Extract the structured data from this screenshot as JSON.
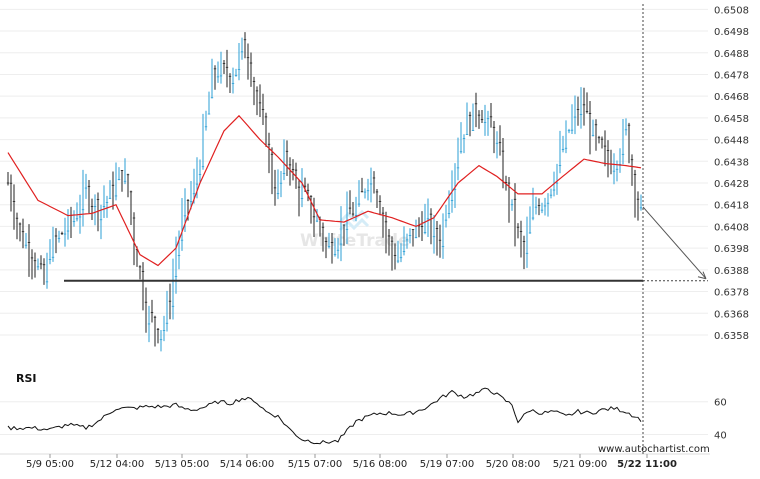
{
  "chart_data": {
    "type": "line",
    "price_chart": {
      "y_ticks": [
        "0.6508",
        "0.6498",
        "0.6488",
        "0.6478",
        "0.6468",
        "0.6458",
        "0.6448",
        "0.6438",
        "0.6428",
        "0.6418",
        "0.6408",
        "0.6398",
        "0.6388",
        "0.6378",
        "0.6368",
        "0.6358"
      ],
      "ylim": [
        0.6352,
        0.651
      ],
      "support_level": 0.6383,
      "projection": {
        "from": 0.6417,
        "to": 0.6383
      },
      "colors": {
        "bull": "#2b9fd6",
        "bear": "#222222",
        "ma": "#e02020",
        "level": "#333333",
        "arrow": "#555555"
      },
      "watermark": "WhiteTrade",
      "x_categories": [
        "5/9 05:00",
        "5/12 04:00",
        "5/13 05:00",
        "5/14 06:00",
        "5/15 07:00",
        "5/16 08:00",
        "5/19 07:00",
        "5/20 08:00",
        "5/21 09:00",
        "5/22 11:00"
      ],
      "ma_anchors": [
        [
          0,
          0.6442
        ],
        [
          10,
          0.642
        ],
        [
          20,
          0.6413
        ],
        [
          28,
          0.6414
        ],
        [
          36,
          0.6418
        ],
        [
          44,
          0.6395
        ],
        [
          50,
          0.639
        ],
        [
          56,
          0.6398
        ],
        [
          64,
          0.6428
        ],
        [
          72,
          0.6452
        ],
        [
          77,
          0.6459
        ],
        [
          84,
          0.6448
        ],
        [
          90,
          0.644
        ],
        [
          98,
          0.6428
        ],
        [
          104,
          0.6411
        ],
        [
          112,
          0.641
        ],
        [
          120,
          0.6415
        ],
        [
          128,
          0.6412
        ],
        [
          136,
          0.6408
        ],
        [
          142,
          0.6412
        ],
        [
          150,
          0.6428
        ],
        [
          157,
          0.6436
        ],
        [
          163,
          0.6431
        ],
        [
          170,
          0.6423
        ],
        [
          178,
          0.6423
        ],
        [
          184,
          0.643
        ],
        [
          192,
          0.6439
        ],
        [
          199,
          0.6437
        ],
        [
          206,
          0.6436
        ],
        [
          211,
          0.6435
        ]
      ],
      "price_anchors": [
        [
          0,
          0.6428
        ],
        [
          4,
          0.6404
        ],
        [
          8,
          0.6396
        ],
        [
          12,
          0.6382
        ],
        [
          14,
          0.6398
        ],
        [
          18,
          0.6405
        ],
        [
          22,
          0.6412
        ],
        [
          26,
          0.6424
        ],
        [
          30,
          0.6416
        ],
        [
          34,
          0.6423
        ],
        [
          38,
          0.6433
        ],
        [
          40,
          0.6424
        ],
        [
          42,
          0.64
        ],
        [
          44,
          0.6386
        ],
        [
          46,
          0.6368
        ],
        [
          48,
          0.6364
        ],
        [
          50,
          0.636
        ],
        [
          52,
          0.6364
        ],
        [
          54,
          0.6375
        ],
        [
          56,
          0.6395
        ],
        [
          58,
          0.641
        ],
        [
          60,
          0.642
        ],
        [
          62,
          0.6425
        ],
        [
          64,
          0.644
        ],
        [
          66,
          0.6458
        ],
        [
          68,
          0.6476
        ],
        [
          70,
          0.648
        ],
        [
          72,
          0.6478
        ],
        [
          74,
          0.6478
        ],
        [
          76,
          0.6482
        ],
        [
          78,
          0.649
        ],
        [
          80,
          0.6487
        ],
        [
          82,
          0.6472
        ],
        [
          84,
          0.6458
        ],
        [
          86,
          0.645
        ],
        [
          88,
          0.6428
        ],
        [
          90,
          0.6425
        ],
        [
          92,
          0.6438
        ],
        [
          94,
          0.6438
        ],
        [
          96,
          0.6425
        ],
        [
          98,
          0.6424
        ],
        [
          100,
          0.6418
        ],
        [
          102,
          0.6412
        ],
        [
          104,
          0.6408
        ],
        [
          106,
          0.6398
        ],
        [
          108,
          0.64
        ],
        [
          110,
          0.6404
        ],
        [
          112,
          0.641
        ],
        [
          114,
          0.6413
        ],
        [
          116,
          0.6417
        ],
        [
          118,
          0.6422
        ],
        [
          120,
          0.6432
        ],
        [
          122,
          0.6428
        ],
        [
          124,
          0.6418
        ],
        [
          126,
          0.6404
        ],
        [
          128,
          0.6395
        ],
        [
          130,
          0.6394
        ],
        [
          132,
          0.6399
        ],
        [
          134,
          0.6404
        ],
        [
          136,
          0.6406
        ],
        [
          138,
          0.641
        ],
        [
          140,
          0.6409
        ],
        [
          142,
          0.6403
        ],
        [
          144,
          0.6402
        ],
        [
          146,
          0.6418
        ],
        [
          148,
          0.643
        ],
        [
          150,
          0.6445
        ],
        [
          152,
          0.6454
        ],
        [
          154,
          0.6457
        ],
        [
          156,
          0.6462
        ],
        [
          158,
          0.646
        ],
        [
          160,
          0.6454
        ],
        [
          162,
          0.645
        ],
        [
          164,
          0.6438
        ],
        [
          166,
          0.6425
        ],
        [
          168,
          0.6416
        ],
        [
          170,
          0.6403
        ],
        [
          172,
          0.6395
        ],
        [
          174,
          0.641
        ],
        [
          176,
          0.6418
        ],
        [
          178,
          0.642
        ],
        [
          180,
          0.6424
        ],
        [
          182,
          0.6432
        ],
        [
          184,
          0.644
        ],
        [
          186,
          0.6448
        ],
        [
          188,
          0.6457
        ],
        [
          190,
          0.6461
        ],
        [
          192,
          0.6462
        ],
        [
          194,
          0.6454
        ],
        [
          196,
          0.6446
        ],
        [
          198,
          0.6442
        ],
        [
          200,
          0.6437
        ],
        [
          202,
          0.6438
        ],
        [
          204,
          0.6445
        ],
        [
          206,
          0.6452
        ],
        [
          208,
          0.6433
        ],
        [
          210,
          0.6418
        ],
        [
          211,
          0.6417
        ]
      ]
    },
    "rsi_chart": {
      "title": "RSI",
      "y_ticks": [
        "60",
        "40"
      ],
      "ylim": [
        33,
        72
      ],
      "anchors": [
        [
          0,
          44
        ],
        [
          8,
          44
        ],
        [
          14,
          43
        ],
        [
          20,
          46
        ],
        [
          26,
          44
        ],
        [
          30,
          48
        ],
        [
          36,
          56
        ],
        [
          42,
          56
        ],
        [
          46,
          57
        ],
        [
          52,
          57
        ],
        [
          56,
          58
        ],
        [
          58,
          56
        ],
        [
          62,
          55
        ],
        [
          66,
          57
        ],
        [
          70,
          60
        ],
        [
          74,
          59
        ],
        [
          78,
          62
        ],
        [
          82,
          61
        ],
        [
          86,
          54
        ],
        [
          90,
          51
        ],
        [
          94,
          43
        ],
        [
          98,
          37
        ],
        [
          104,
          35
        ],
        [
          110,
          36
        ],
        [
          116,
          48
        ],
        [
          120,
          51
        ],
        [
          124,
          53
        ],
        [
          128,
          53
        ],
        [
          132,
          52
        ],
        [
          136,
          54
        ],
        [
          140,
          57
        ],
        [
          144,
          62
        ],
        [
          148,
          66
        ],
        [
          152,
          63
        ],
        [
          156,
          65
        ],
        [
          160,
          68
        ],
        [
          164,
          63
        ],
        [
          168,
          58
        ],
        [
          170,
          48
        ],
        [
          174,
          55
        ],
        [
          178,
          53
        ],
        [
          182,
          54
        ],
        [
          186,
          51
        ],
        [
          190,
          54
        ],
        [
          194,
          53
        ],
        [
          198,
          55
        ],
        [
          202,
          56
        ],
        [
          206,
          54
        ],
        [
          210,
          50
        ],
        [
          211,
          49
        ]
      ]
    }
  },
  "footer": {
    "watermark_text": "www.autochartist.com"
  }
}
